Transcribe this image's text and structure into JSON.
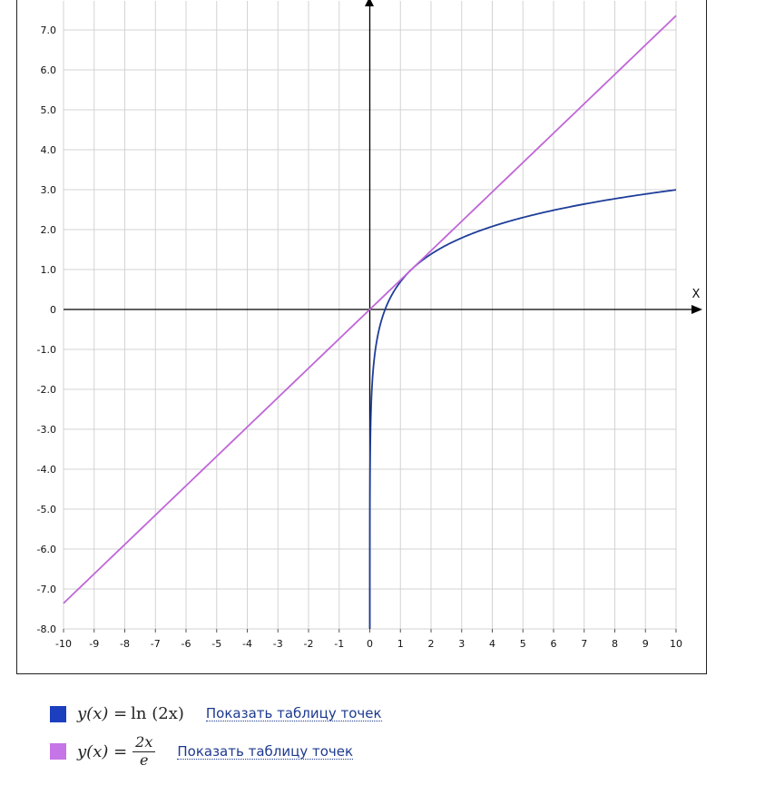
{
  "chart_data": {
    "type": "line",
    "xlabel": "X",
    "ylabel": "",
    "xlim": [
      -10,
      10
    ],
    "ylim": [
      -8,
      7.5
    ],
    "x_ticks": [
      "-10",
      "-9",
      "-8",
      "-7",
      "-6",
      "-5",
      "-4",
      "-3",
      "-2",
      "-1",
      "0",
      "1",
      "2",
      "3",
      "4",
      "5",
      "6",
      "7",
      "8",
      "9",
      "10"
    ],
    "y_ticks": [
      "7.0",
      "6.0",
      "5.0",
      "4.0",
      "3.0",
      "2.0",
      "1.0",
      "0",
      "-1.0",
      "-2.0",
      "-3.0",
      "-4.0",
      "-5.0",
      "-6.0",
      "-7.0",
      "-8.0"
    ],
    "grid": true,
    "series": [
      {
        "name": "y(x) = ln(2x)",
        "color": "#1f3d99",
        "function": "ln(2x)",
        "domain": [
          0.00017,
          10
        ]
      },
      {
        "name": "y(x) = 2x/e",
        "color": "#c066d8",
        "function": "2x/e",
        "domain": [
          -10,
          10
        ]
      }
    ]
  },
  "legend": [
    {
      "color": "#1b3fbf",
      "formula_prefix": "y(x) = ",
      "formula_body": "ln (2x)",
      "link": "Показать таблицу точек"
    },
    {
      "color": "#c575e6",
      "formula_prefix": "y(x) = ",
      "frac_num": "2x",
      "frac_den": "e",
      "link": "Показать таблицу точек"
    }
  ]
}
